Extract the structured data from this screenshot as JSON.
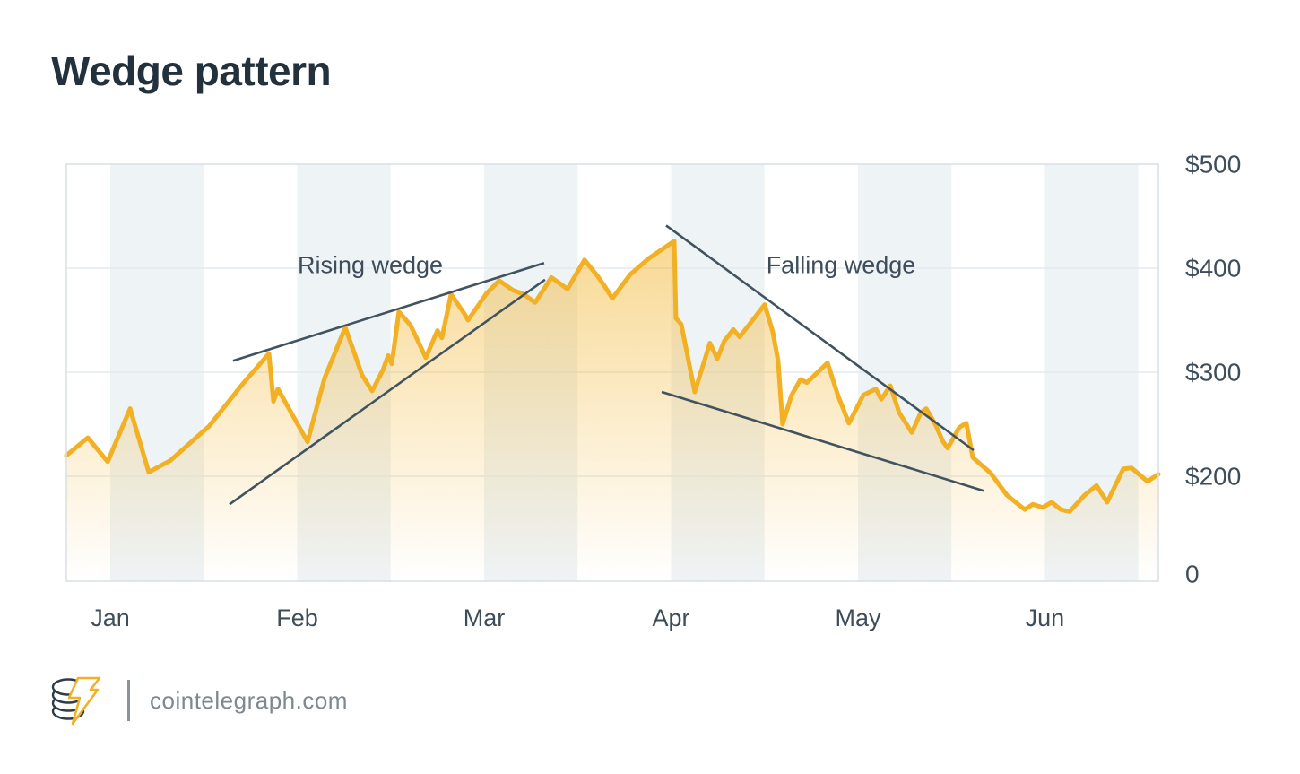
{
  "title": "Wedge pattern",
  "footer": {
    "brand": "cointelegraph.com",
    "logo": "cointelegraph-coin-bolt-icon"
  },
  "colors": {
    "accent_yellow": "#F2B124",
    "area_fill_base": "#F2B32A",
    "trendline_slate": "#41535F",
    "text_slate": "#3E4D59",
    "title_color": "#22313C",
    "band_fill": "#EEF3F6",
    "gridline": "#E3EAEF",
    "plot_border": "#D8DFE5",
    "brand_gray": "#7E888F"
  },
  "chart_data": {
    "type": "area",
    "title": "Wedge pattern",
    "legend": "none",
    "grid": "horizontal-only",
    "x_axis": {
      "tick_labels": [
        "Jan",
        "Feb",
        "Mar",
        "Apr",
        "May",
        "Jun"
      ],
      "tick_months": [
        0,
        1,
        2,
        3,
        4,
        5
      ],
      "range_months": [
        -0.235,
        5.607
      ]
    },
    "y_axis": {
      "tick_labels": [
        "$500",
        "$400",
        "$300",
        "$200",
        "0"
      ],
      "tick_values": [
        500,
        400,
        300,
        200,
        0
      ],
      "unit": "USD",
      "range": [
        0,
        500
      ],
      "position": "right"
    },
    "bands": {
      "start_months": [
        0,
        1,
        2,
        3,
        4,
        5
      ],
      "width_months": 0.5
    },
    "series": [
      {
        "name": "price",
        "points": [
          [
            -0.235,
            220
          ],
          [
            -0.12,
            237
          ],
          [
            -0.014,
            214
          ],
          [
            0.106,
            265
          ],
          [
            0.206,
            204
          ],
          [
            0.321,
            215
          ],
          [
            0.528,
            248
          ],
          [
            0.705,
            288
          ],
          [
            0.849,
            318
          ],
          [
            0.873,
            272
          ],
          [
            0.897,
            284
          ],
          [
            1.055,
            233
          ],
          [
            1.146,
            294
          ],
          [
            1.257,
            343
          ],
          [
            1.348,
            297
          ],
          [
            1.401,
            282
          ],
          [
            1.458,
            302
          ],
          [
            1.487,
            316
          ],
          [
            1.506,
            308
          ],
          [
            1.544,
            358
          ],
          [
            1.607,
            345
          ],
          [
            1.688,
            314
          ],
          [
            1.75,
            340
          ],
          [
            1.774,
            333
          ],
          [
            1.823,
            375
          ],
          [
            1.895,
            356
          ],
          [
            1.914,
            350
          ],
          [
            2.014,
            376
          ],
          [
            2.081,
            388
          ],
          [
            2.153,
            379
          ],
          [
            2.211,
            375
          ],
          [
            2.273,
            367
          ],
          [
            2.36,
            391
          ],
          [
            2.446,
            380
          ],
          [
            2.537,
            408
          ],
          [
            2.609,
            392
          ],
          [
            2.647,
            382
          ],
          [
            2.686,
            371
          ],
          [
            2.782,
            394
          ],
          [
            2.878,
            409
          ],
          [
            3.017,
            426
          ],
          [
            3.026,
            352
          ],
          [
            3.055,
            346
          ],
          [
            3.127,
            281
          ],
          [
            3.208,
            328
          ],
          [
            3.247,
            313
          ],
          [
            3.285,
            330
          ],
          [
            3.333,
            341
          ],
          [
            3.367,
            334
          ],
          [
            3.501,
            365
          ],
          [
            3.544,
            339
          ],
          [
            3.573,
            311
          ],
          [
            3.597,
            250
          ],
          [
            3.645,
            278
          ],
          [
            3.693,
            293
          ],
          [
            3.727,
            290
          ],
          [
            3.837,
            309
          ],
          [
            3.894,
            277
          ],
          [
            3.952,
            251
          ],
          [
            4.029,
            278
          ],
          [
            4.096,
            284
          ],
          [
            4.125,
            274
          ],
          [
            4.173,
            287
          ],
          [
            4.221,
            261
          ],
          [
            4.288,
            242
          ],
          [
            4.336,
            261
          ],
          [
            4.365,
            265
          ],
          [
            4.413,
            250
          ],
          [
            4.456,
            233
          ],
          [
            4.48,
            227
          ],
          [
            4.542,
            247
          ],
          [
            4.58,
            251
          ],
          [
            4.614,
            218
          ],
          [
            4.71,
            203
          ],
          [
            4.796,
            182
          ],
          [
            4.892,
            168
          ],
          [
            4.935,
            173
          ],
          [
            4.988,
            170
          ],
          [
            5.036,
            175
          ],
          [
            5.084,
            168
          ],
          [
            5.132,
            166
          ],
          [
            5.213,
            182
          ],
          [
            5.276,
            191
          ],
          [
            5.333,
            175
          ],
          [
            5.419,
            207
          ],
          [
            5.463,
            208
          ],
          [
            5.549,
            195
          ],
          [
            5.607,
            202
          ]
        ]
      }
    ],
    "trend_lines": [
      {
        "name": "rising-wedge-upper",
        "from": [
          0.657,
          311
        ],
        "to": [
          2.321,
          405
        ]
      },
      {
        "name": "rising-wedge-lower",
        "from": [
          0.638,
          173
        ],
        "to": [
          2.326,
          389
        ]
      },
      {
        "name": "falling-wedge-upper",
        "from": [
          2.974,
          441
        ],
        "to": [
          4.619,
          225
        ]
      },
      {
        "name": "falling-wedge-lower",
        "from": [
          2.95,
          281
        ],
        "to": [
          4.672,
          186
        ]
      }
    ],
    "annotations": [
      {
        "text": "Rising wedge",
        "x_month": 1.391,
        "y_value": 403
      },
      {
        "text": "Falling wedge",
        "x_month": 3.909,
        "y_value": 403
      }
    ]
  }
}
